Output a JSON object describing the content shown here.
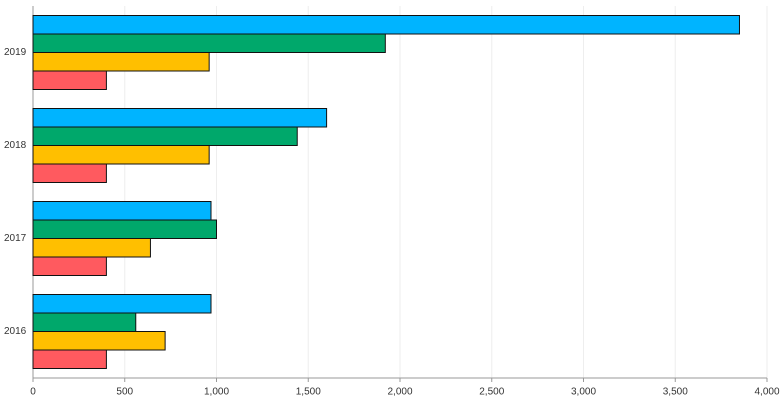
{
  "chart_data": {
    "type": "bar",
    "orientation": "horizontal",
    "categories": [
      "2019",
      "2018",
      "2017",
      "2016"
    ],
    "series": [
      {
        "color": "#00b4ff",
        "values": [
          3850,
          1600,
          970,
          970
        ]
      },
      {
        "color": "#00a86b",
        "values": [
          1920,
          1440,
          1000,
          560
        ]
      },
      {
        "color": "#ffbf00",
        "values": [
          960,
          960,
          640,
          720
        ]
      },
      {
        "color": "#ff5a5f",
        "values": [
          400,
          400,
          400,
          400
        ]
      }
    ],
    "xlim": [
      0,
      4000
    ],
    "xticks": [
      0,
      500,
      {
        "value": 1000,
        "label": "1,000"
      },
      {
        "value": 1500,
        "label": "1,500"
      },
      {
        "value": 2000,
        "label": "2,000"
      },
      {
        "value": 2500,
        "label": "2,500"
      },
      {
        "value": 3000,
        "label": "3,000"
      },
      {
        "value": 3500,
        "label": "3,500"
      },
      {
        "value": 4000,
        "label": "4,000"
      }
    ],
    "grid": true
  }
}
